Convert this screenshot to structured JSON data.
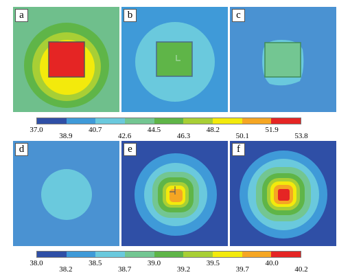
{
  "panels": [
    {
      "label": "a",
      "icon": "contour-map-image"
    },
    {
      "label": "b",
      "icon": "contour-map-image"
    },
    {
      "label": "c",
      "icon": "contour-map-image"
    },
    {
      "label": "d",
      "icon": "contour-map-image"
    },
    {
      "label": "e",
      "icon": "contour-map-image"
    },
    {
      "label": "f",
      "icon": "contour-map-image"
    }
  ],
  "colorbar_top": {
    "colors": [
      "#2f4fa6",
      "#3f9ad8",
      "#6ac9dd",
      "#73c692",
      "#5fb548",
      "#a8cf35",
      "#f3ea0c",
      "#f5a623",
      "#e52524"
    ],
    "ticks": [
      "37.0",
      "38.9",
      "40.7",
      "42.6",
      "44.5",
      "46.3",
      "48.2",
      "50.1",
      "51.9",
      "53.8"
    ]
  },
  "colorbar_bottom": {
    "colors": [
      "#2f4fa6",
      "#3f9ad8",
      "#6ac9dd",
      "#73c692",
      "#5fb548",
      "#a8cf35",
      "#f3ea0c",
      "#f5a623",
      "#e52524"
    ],
    "ticks": [
      "38.0",
      "38.2",
      "38.5",
      "38.7",
      "39.0",
      "39.2",
      "39.5",
      "39.7",
      "40.0",
      "40.2"
    ]
  }
}
